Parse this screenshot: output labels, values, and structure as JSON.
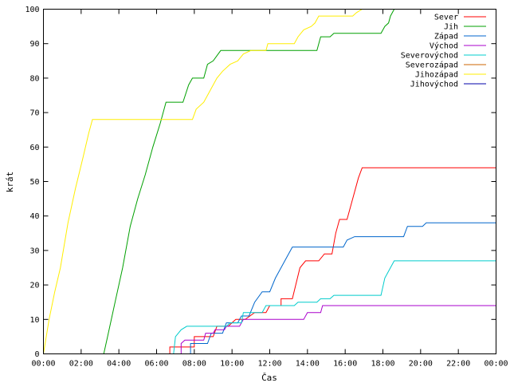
{
  "chart_data": {
    "type": "line",
    "xlabel": "Čas",
    "ylabel": "krát",
    "x_unit": "hours",
    "xlim": [
      0,
      24
    ],
    "ylim": [
      0,
      100
    ],
    "x_tick_values": [
      0,
      2,
      4,
      6,
      8,
      10,
      12,
      14,
      16,
      18,
      20,
      22,
      24
    ],
    "x_tick_labels": [
      "00:00",
      "02:00",
      "04:00",
      "06:00",
      "08:00",
      "10:00",
      "12:00",
      "14:00",
      "16:00",
      "18:00",
      "20:00",
      "22:00",
      "00:00"
    ],
    "y_ticks": [
      0,
      10,
      20,
      30,
      40,
      50,
      60,
      70,
      80,
      90,
      100
    ],
    "legend_position": "top-right",
    "grid": false,
    "series": [
      {
        "name": "Sever",
        "color": "#ff0000",
        "points": [
          [
            6.7,
            0
          ],
          [
            6.7,
            2
          ],
          [
            8.0,
            2
          ],
          [
            8.0,
            5
          ],
          [
            9.0,
            5
          ],
          [
            9.2,
            8
          ],
          [
            9.8,
            8
          ],
          [
            10.2,
            10
          ],
          [
            10.7,
            10
          ],
          [
            11.2,
            12
          ],
          [
            11.8,
            12
          ],
          [
            12.0,
            14
          ],
          [
            12.6,
            14
          ],
          [
            12.6,
            16
          ],
          [
            13.2,
            16
          ],
          [
            13.6,
            25
          ],
          [
            13.9,
            27
          ],
          [
            14.6,
            27
          ],
          [
            14.9,
            29
          ],
          [
            15.3,
            29
          ],
          [
            15.5,
            35
          ],
          [
            15.7,
            39
          ],
          [
            16.1,
            39
          ],
          [
            16.4,
            45
          ],
          [
            16.7,
            51
          ],
          [
            16.9,
            54
          ],
          [
            24,
            54
          ]
        ]
      },
      {
        "name": "Jih",
        "color": "#00a000",
        "points": [
          [
            3.2,
            0
          ],
          [
            3.4,
            5
          ],
          [
            3.8,
            15
          ],
          [
            4.2,
            25
          ],
          [
            4.6,
            37
          ],
          [
            5.0,
            45
          ],
          [
            5.4,
            52
          ],
          [
            5.8,
            60
          ],
          [
            6.2,
            67
          ],
          [
            6.5,
            73
          ],
          [
            7.4,
            73
          ],
          [
            7.7,
            78
          ],
          [
            7.9,
            80
          ],
          [
            8.5,
            80
          ],
          [
            8.7,
            84
          ],
          [
            9.0,
            85
          ],
          [
            9.4,
            88
          ],
          [
            10.9,
            88
          ],
          [
            11.1,
            88
          ],
          [
            14.5,
            88
          ],
          [
            14.7,
            92
          ],
          [
            15.2,
            92
          ],
          [
            15.4,
            93
          ],
          [
            17.9,
            93
          ],
          [
            18.1,
            95
          ],
          [
            18.3,
            96
          ],
          [
            18.4,
            98
          ],
          [
            18.6,
            100
          ],
          [
            24,
            100
          ]
        ]
      },
      {
        "name": "Západ",
        "color": "#0066cc",
        "points": [
          [
            7.8,
            0
          ],
          [
            7.8,
            3
          ],
          [
            8.7,
            3
          ],
          [
            8.9,
            6
          ],
          [
            9.5,
            6
          ],
          [
            9.7,
            9
          ],
          [
            10.3,
            9
          ],
          [
            10.5,
            11
          ],
          [
            10.9,
            11
          ],
          [
            11.2,
            15
          ],
          [
            11.6,
            18
          ],
          [
            12.0,
            18
          ],
          [
            12.3,
            22
          ],
          [
            12.6,
            25
          ],
          [
            12.9,
            28
          ],
          [
            13.2,
            31
          ],
          [
            15.9,
            31
          ],
          [
            16.1,
            33
          ],
          [
            16.5,
            34
          ],
          [
            19.1,
            34
          ],
          [
            19.3,
            37
          ],
          [
            20.1,
            37
          ],
          [
            20.3,
            38
          ],
          [
            24,
            38
          ]
        ]
      },
      {
        "name": "Východ",
        "color": "#aa00cc",
        "points": [
          [
            7.3,
            0
          ],
          [
            7.3,
            3
          ],
          [
            7.5,
            4
          ],
          [
            8.5,
            4
          ],
          [
            8.6,
            6
          ],
          [
            9.0,
            6
          ],
          [
            9.1,
            7
          ],
          [
            9.6,
            7
          ],
          [
            9.7,
            8
          ],
          [
            10.4,
            8
          ],
          [
            10.6,
            10
          ],
          [
            13.8,
            10
          ],
          [
            14.0,
            12
          ],
          [
            14.7,
            12
          ],
          [
            14.8,
            14
          ],
          [
            24,
            14
          ]
        ]
      },
      {
        "name": "Severovýchod",
        "color": "#00cccc",
        "points": [
          [
            6.9,
            0
          ],
          [
            7.0,
            5
          ],
          [
            7.3,
            7
          ],
          [
            7.6,
            8
          ],
          [
            9.7,
            8
          ],
          [
            9.9,
            9
          ],
          [
            10.5,
            9
          ],
          [
            10.6,
            12
          ],
          [
            11.6,
            12
          ],
          [
            11.8,
            14
          ],
          [
            13.3,
            14
          ],
          [
            13.5,
            15
          ],
          [
            14.5,
            15
          ],
          [
            14.7,
            16
          ],
          [
            15.2,
            16
          ],
          [
            15.4,
            17
          ],
          [
            17.9,
            17
          ],
          [
            18.1,
            22
          ],
          [
            18.4,
            25
          ],
          [
            18.6,
            27
          ],
          [
            24,
            27
          ]
        ]
      },
      {
        "name": "Severozápad",
        "color": "#cc6600",
        "points": []
      },
      {
        "name": "Jihozápad",
        "color": "#ffee00",
        "points": [
          [
            0.0,
            0
          ],
          [
            0.3,
            10
          ],
          [
            0.6,
            18
          ],
          [
            0.9,
            25
          ],
          [
            1.3,
            38
          ],
          [
            1.7,
            48
          ],
          [
            2.1,
            57
          ],
          [
            2.4,
            64
          ],
          [
            2.6,
            68
          ],
          [
            6.3,
            68
          ],
          [
            6.5,
            68
          ],
          [
            7.9,
            68
          ],
          [
            8.1,
            71
          ],
          [
            8.5,
            73
          ],
          [
            8.9,
            77
          ],
          [
            9.2,
            80
          ],
          [
            9.5,
            82
          ],
          [
            9.9,
            84
          ],
          [
            10.3,
            85
          ],
          [
            10.6,
            87
          ],
          [
            11.0,
            88
          ],
          [
            11.8,
            88
          ],
          [
            11.9,
            90
          ],
          [
            13.3,
            90
          ],
          [
            13.5,
            92
          ],
          [
            13.8,
            94
          ],
          [
            14.2,
            95
          ],
          [
            14.4,
            96
          ],
          [
            14.6,
            98
          ],
          [
            16.4,
            98
          ],
          [
            16.6,
            99
          ],
          [
            16.9,
            100
          ],
          [
            17.1,
            100
          ],
          [
            24,
            100
          ]
        ]
      },
      {
        "name": "Jihovýchod",
        "color": "#0000aa",
        "points": []
      }
    ]
  }
}
